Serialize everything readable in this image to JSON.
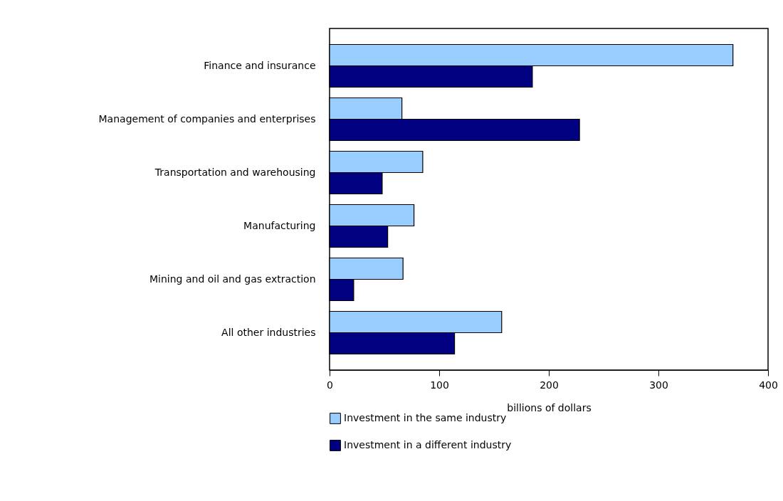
{
  "chart_data": {
    "type": "bar",
    "orientation": "horizontal",
    "categories": [
      "Finance and insurance",
      "Management of companies and enterprises",
      "Transportation and warehousing",
      "Manufacturing",
      "Mining and oil and gas extraction",
      "All other industries"
    ],
    "series": [
      {
        "name": "Investment in the same industry",
        "color": "#99ccff",
        "values": [
          368,
          66,
          85,
          77,
          67,
          157
        ]
      },
      {
        "name": "Investment in a different industry",
        "color": "#000080",
        "values": [
          185,
          228,
          48,
          53,
          22,
          114
        ]
      }
    ],
    "xlabel": "billions of dollars",
    "xlim": [
      0,
      400
    ],
    "xticks": [
      0,
      100,
      200,
      300,
      400
    ],
    "grid": false,
    "legend": "bottom"
  }
}
